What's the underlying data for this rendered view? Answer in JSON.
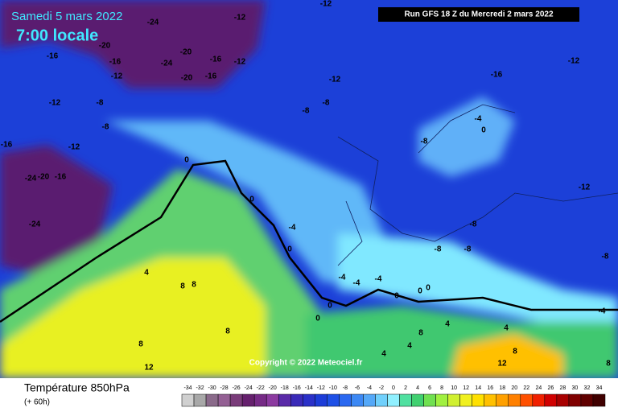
{
  "header": {
    "date": "Samedi 5 mars 2022",
    "time": "7:00 locale",
    "run": "Run GFS 18 Z du Mercredi 2 mars 2022"
  },
  "map": {
    "copyright": "Copyright © 2022 Meteociel.fr",
    "contour_labels": [
      "-24",
      "-12",
      "-12",
      "-20",
      "-16",
      "-24",
      "-20",
      "-16",
      "-12",
      "-20",
      "-16",
      "-16",
      "-12",
      "-12",
      "-12",
      "-16",
      "-12",
      "-8",
      "-8",
      "-8",
      "-8",
      "-4",
      "0",
      "-8",
      "-12",
      "-24",
      "-20",
      "-16",
      "-24",
      "0",
      "0",
      "-4",
      "0",
      "-8",
      "-8",
      "-8",
      "-8",
      "4",
      "8",
      "8",
      "8",
      "8",
      "12",
      "-4",
      "-4",
      "-4",
      "0",
      "0",
      "0",
      "0",
      "0",
      "4",
      "4",
      "-4",
      "4",
      "4",
      "8",
      "12",
      "8",
      "8",
      "-12",
      "-16"
    ]
  },
  "legend": {
    "title": "Température 850hPa",
    "lead": "(+ 60h)",
    "ticks": [
      -34,
      -32,
      -30,
      -28,
      -26,
      -24,
      -22,
      -20,
      -18,
      -16,
      -14,
      -12,
      -10,
      -8,
      -6,
      -4,
      -2,
      0,
      2,
      4,
      6,
      8,
      10,
      12,
      14,
      16,
      18,
      20,
      22,
      24,
      26,
      28,
      30,
      32,
      34
    ],
    "colors": [
      "#d0d0d0",
      "#a8a8a8",
      "#8a6a8a",
      "#946094",
      "#7a3c7a",
      "#66206e",
      "#762a86",
      "#8c3aa0",
      "#5a2aa8",
      "#3a2ab8",
      "#2a30c8",
      "#1c3cd8",
      "#1e50e6",
      "#2a68f0",
      "#3c88f4",
      "#54a8f8",
      "#70d0fc",
      "#90f0ff",
      "#50e0a0",
      "#40d070",
      "#70e050",
      "#a0f040",
      "#d0f030",
      "#f0f020",
      "#ffe000",
      "#ffc000",
      "#ffa000",
      "#ff8000",
      "#ff5000",
      "#f02000",
      "#d00000",
      "#a80000",
      "#800000",
      "#600000",
      "#400000"
    ]
  }
}
